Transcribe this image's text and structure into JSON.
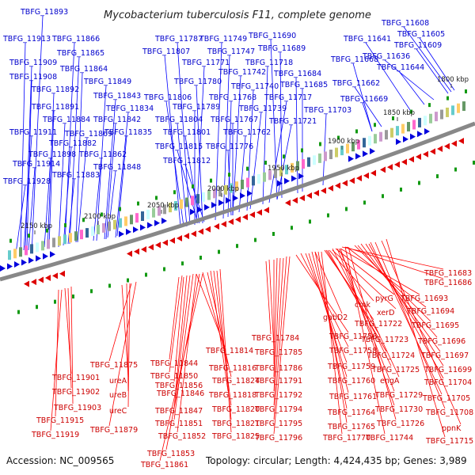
{
  "title": "Mycobacterium tuberculosis F11, complete genome",
  "footer": {
    "accession": "Accession: NC_009565",
    "summary": "Topology: circular; Length: 4,424,435 bp; Genes: 3,989"
  },
  "ticks": [
    "1800 kbp",
    "1850 kbp",
    "1900 kbp",
    "1950 kbp",
    "2000 kbp",
    "2050 kbp",
    "2100 kbp",
    "2150 kbp"
  ],
  "forward_labels": [
    "TBFG_11893",
    "TBFG_11913",
    "TBFG_11866",
    "TBFG_11865",
    "TBFG_11909",
    "TBFG_11864",
    "TBFG_11908",
    "TBFG_11849",
    "TBFG_11892",
    "TBFG_11843",
    "TBFG_11891",
    "TBFG_11834",
    "TBFG_11884",
    "TBFG_11842",
    "TBFG_11911",
    "TBFG_11869",
    "TBFG_11835",
    "TBFG_11882",
    "TBFG_11898",
    "TBFG_11862",
    "TBFG_11914",
    "TBFG_11848",
    "TBFG_11883",
    "TBFG_11928",
    "TBFG_11787",
    "TBFG_11749",
    "TBFG_11690",
    "TBFG_11807",
    "TBFG_11747",
    "TBFG_11689",
    "TBFG_11771",
    "TBFG_11718",
    "TBFG_11742",
    "TBFG_11684",
    "TBFG_11780",
    "TBFG_11740",
    "TBFG_11685",
    "TBFG_11806",
    "TBFG_11768",
    "TBFG_11717",
    "TBFG_11789",
    "TBFG_11739",
    "TBFG_11703",
    "TBFG_11804",
    "TBFG_11767",
    "TBFG_11721",
    "TBFG_11801",
    "TBFG_11762",
    "TBFG_11815",
    "TBFG_11776",
    "TBFG_11812",
    "TBFG_11608",
    "TBFG_11605",
    "TBFG_11641",
    "TBFG_11609",
    "TBFG_11636",
    "TBFG_11668",
    "TBFG_11644",
    "TBFG_11662",
    "TBFG_11669"
  ],
  "reverse_labels": [
    "TBFG_11683",
    "TBFG_11686",
    "pyrG",
    "TBFG_11693",
    "cmk",
    "xerD",
    "TBFG_11694",
    "gabD2",
    "TBFG_11722",
    "TBFG_11695",
    "TBFG_11756",
    "TBFG_11723",
    "TBFG_11696",
    "TBFG_11784",
    "TBFG_11758",
    "TBFG_11724",
    "TBFG_11697",
    "TBFG_11814",
    "TBFG_11785",
    "TBFG_11725",
    "TBFG_11699",
    "TBFG_11875",
    "TBFG_11844",
    "TBFG_11816",
    "TBFG_11786",
    "TBFG_11759",
    "engA",
    "TBFG_11704",
    "TBFG_11850",
    "TBFG_11824",
    "TBFG_11791",
    "TBFG_11760",
    "TBFG_11729",
    "TBFG_11705",
    "TBFG_11901",
    "ureA",
    "TBFG_11856",
    "TBFG_11818",
    "TBFG_11792",
    "TBFG_11846",
    "TBFG_11761",
    "TBFG_11730",
    "TBFG_11708",
    "TBFG_11902",
    "ureB",
    "TBFG_11847",
    "TBFG_11820",
    "TBFG_11794",
    "TBFG_11764",
    "TBFG_11903",
    "ureC",
    "TBFG_11851",
    "TBFG_11821",
    "TBFG_11795",
    "TBFG_11726",
    "ppnK",
    "TBFG_11915",
    "TBFG_11879",
    "TBFG_11765",
    "TBFG_11744",
    "TBFG_11852",
    "TBFG_11825",
    "TBFG_11796",
    "TBFG_11770",
    "TBFG_11715",
    "TBFG_11919",
    "TBFG_11853",
    "TBFG_11861"
  ],
  "colors": {
    "forward": "#0000dd",
    "reverse": "#dd0000",
    "backbone": "#888888",
    "forward_line": "#0000ff",
    "reverse_line": "#ff0000"
  }
}
